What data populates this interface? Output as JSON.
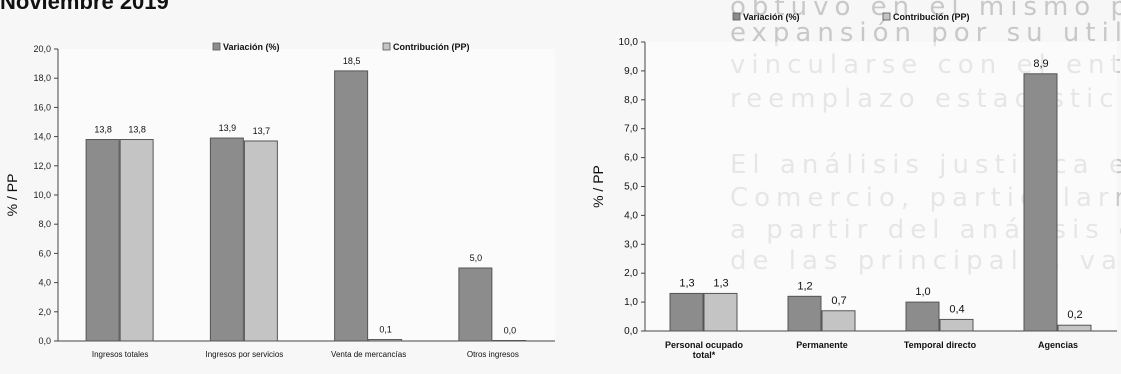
{
  "heading": "Noviembre 2019",
  "background_text": [
    "obtuvo en el mismo periodo del año anterior, explicada por",
    "expansión por su utilidad, con sus aportes a la cadena de valor",
    "vincularse con el entorno, y el diseño de política pública que valide",
    "reemplazo estadístico.",
    "",
    "El análisis justifica en la revisión y análisis del efecto de las",
    "Comercio, particularmente en lo que se refiere al mercado",
    "a partir del análisis del comportamiento de ventas y personal",
    "de las principales variables del comercio al por menor en"
  ],
  "colors": {
    "variacion": "#8c8c8c",
    "contribucion": "#c4c4c4"
  },
  "chart_data": [
    {
      "type": "bar",
      "title": "",
      "xlabel": "",
      "ylabel": "% / PP",
      "ylim": [
        0,
        20
      ],
      "yticks": [
        "0,0",
        "2,0",
        "4,0",
        "6,0",
        "8,0",
        "10,0",
        "12,0",
        "14,0",
        "16,0",
        "18,0",
        "20,0"
      ],
      "legend_position": "top",
      "categories": [
        "Ingresos totales",
        "Ingresos por servicios",
        "Venta de mercancías",
        "Otros ingresos"
      ],
      "series": [
        {
          "name": "Variación (%)",
          "values": [
            13.8,
            13.9,
            18.5,
            5.0
          ],
          "labels": [
            "13,8",
            "13,9",
            "18,5",
            "5,0"
          ]
        },
        {
          "name": "Contribución (PP)",
          "values": [
            13.8,
            13.7,
            0.1,
            0.0
          ],
          "labels": [
            "13,8",
            "13,7",
            "0,1",
            "0,0"
          ]
        }
      ]
    },
    {
      "type": "bar",
      "title": "",
      "xlabel": "",
      "ylabel": "% / PP",
      "ylim": [
        0,
        10
      ],
      "yticks": [
        "0,0",
        "1,0",
        "2,0",
        "3,0",
        "4,0",
        "5,0",
        "6,0",
        "7,0",
        "8,0",
        "9,0",
        "10,0"
      ],
      "legend_position": "top",
      "categories": [
        "Personal ocupado total*",
        "Permanente",
        "Temporal directo",
        "Agencias"
      ],
      "series": [
        {
          "name": "Variación (%)",
          "values": [
            1.3,
            1.2,
            1.0,
            8.9
          ],
          "labels": [
            "1,3",
            "1,2",
            "1,0",
            "8,9"
          ]
        },
        {
          "name": "Contribución (PP)",
          "values": [
            1.3,
            0.7,
            0.4,
            0.2
          ],
          "labels": [
            "1,3",
            "0,7",
            "0,4",
            "0,2"
          ]
        }
      ]
    }
  ]
}
